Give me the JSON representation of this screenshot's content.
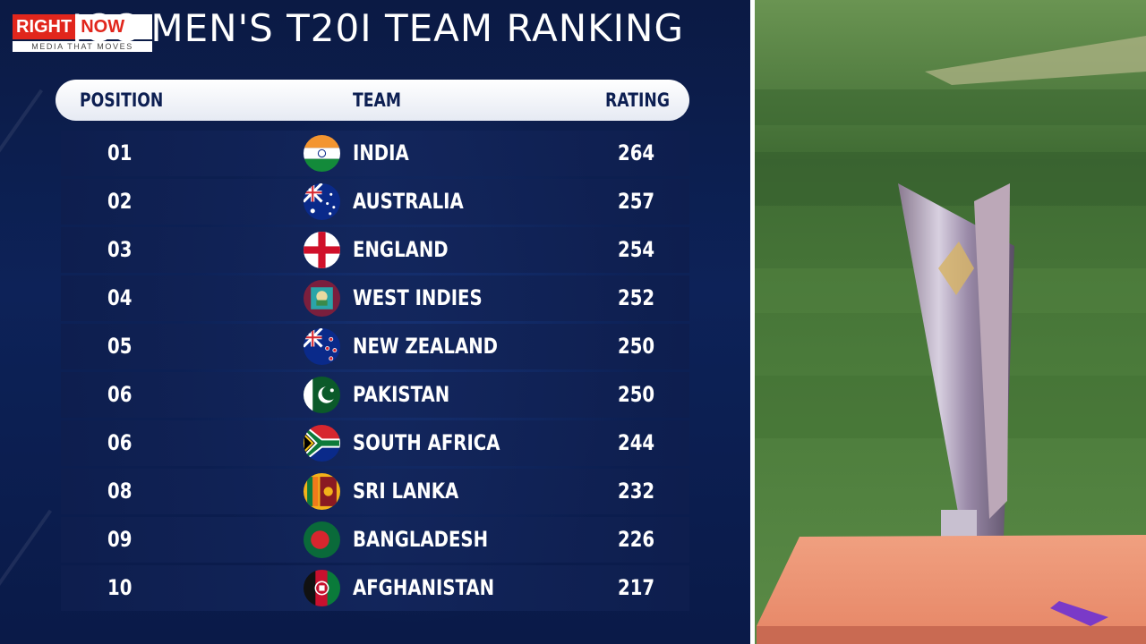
{
  "brand": {
    "word1": "RIGHT",
    "word2": "NOW",
    "tagline": "MEDIA THAT MOVES"
  },
  "title": "ICC MEN'S T20I TEAM RANKING",
  "table": {
    "headers": {
      "position": "POSITION",
      "team": "TEAM",
      "rating": "RATING"
    },
    "rows": [
      {
        "position": "01",
        "team": "INDIA",
        "rating": "264",
        "flag": "india-flag-icon"
      },
      {
        "position": "02",
        "team": "AUSTRALIA",
        "rating": "257",
        "flag": "australia-flag-icon"
      },
      {
        "position": "03",
        "team": "ENGLAND",
        "rating": "254",
        "flag": "england-flag-icon"
      },
      {
        "position": "04",
        "team": "WEST INDIES",
        "rating": "252",
        "flag": "west-indies-flag-icon"
      },
      {
        "position": "05",
        "team": "NEW ZEALAND",
        "rating": "250",
        "flag": "new-zealand-flag-icon"
      },
      {
        "position": "06",
        "team": "PAKISTAN",
        "rating": "250",
        "flag": "pakistan-flag-icon"
      },
      {
        "position": "06",
        "team": "SOUTH AFRICA",
        "rating": "244",
        "flag": "south-africa-flag-icon"
      },
      {
        "position": "08",
        "team": "SRI LANKA",
        "rating": "232",
        "flag": "sri-lanka-flag-icon"
      },
      {
        "position": "09",
        "team": "BANGLADESH",
        "rating": "226",
        "flag": "bangladesh-flag-icon"
      },
      {
        "position": "10",
        "team": "AFGHANISTAN",
        "rating": "217",
        "flag": "afghanistan-flag-icon"
      }
    ]
  },
  "colors": {
    "background": "#0b1a44",
    "brand_red": "#e1261c",
    "header_pill": "#ffffff",
    "header_text": "#0d1f52"
  }
}
